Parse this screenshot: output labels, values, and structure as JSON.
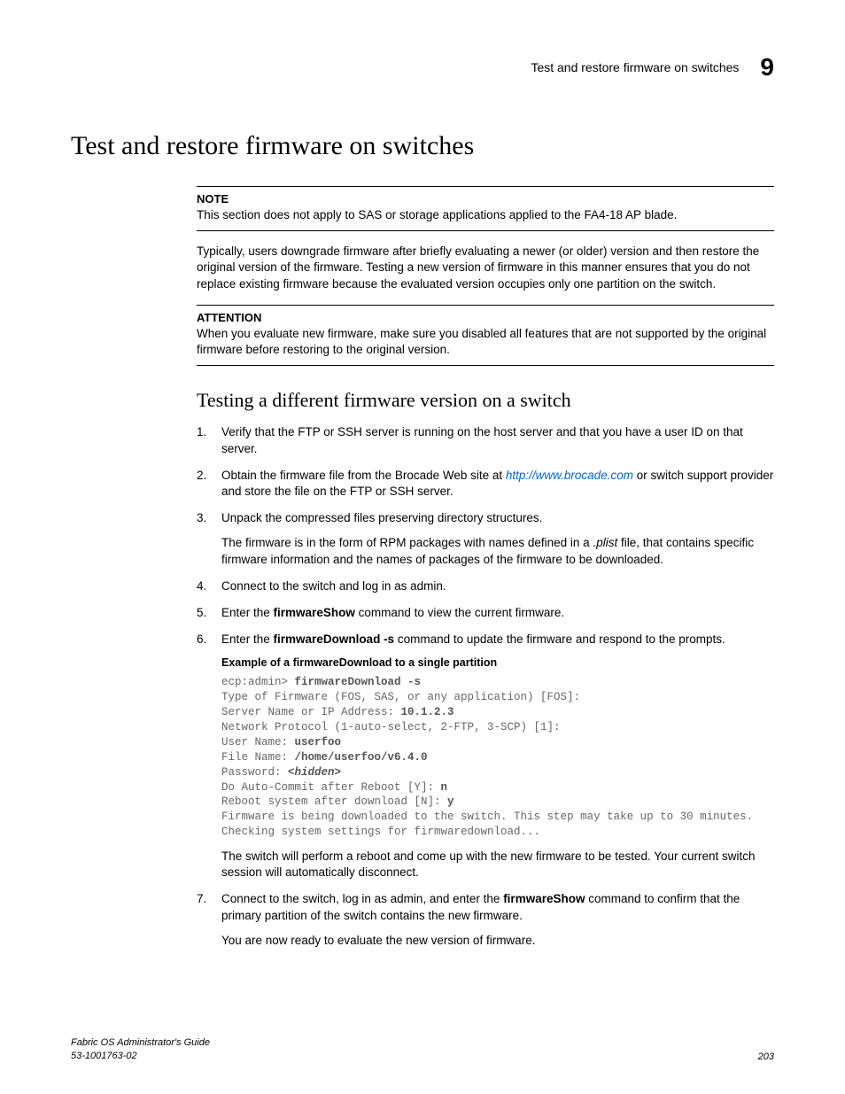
{
  "header": {
    "running_title": "Test and restore firmware on switches",
    "chapter_number": "9"
  },
  "main_title": "Test and restore firmware on switches",
  "note": {
    "label": "NOTE",
    "text": "This section does not apply to SAS or storage applications applied to the FA4-18 AP blade."
  },
  "intro_paragraph": "Typically, users downgrade firmware after briefly evaluating a newer (or older) version and then restore the original version of the firmware. Testing a new version of firmware in this manner ensures that you do not replace existing firmware because the evaluated version occupies only one partition on the switch.",
  "attention": {
    "label": "ATTENTION",
    "text": "When you evaluate new firmware, make sure you disabled all features that are not supported by the original firmware before restoring to the original version."
  },
  "subheading": "Testing a different firmware version on a switch",
  "steps": {
    "s1": "Verify that the FTP or SSH server is running on the host server and that you have a user ID on that server.",
    "s2_a": "Obtain the firmware file from the Brocade Web site at ",
    "s2_link": "http://www.brocade.com",
    "s2_b": " or switch support provider and store the file on the FTP or SSH server.",
    "s3": "Unpack the compressed files preserving directory structures.",
    "s3_sub_a": "The firmware is in the form of RPM packages with names defined in a ",
    "s3_sub_plist": ".plist",
    "s3_sub_b": " file, that contains specific firmware information and the names of packages of the firmware to be downloaded.",
    "s4": "Connect to the switch and log in as admin.",
    "s5_a": "Enter the ",
    "s5_cmd": "firmwareShow",
    "s5_b": " command to view the current firmware.",
    "s6_a": "Enter the ",
    "s6_cmd": "firmwareDownload -s",
    "s6_b": " command to update the firmware and respond to the prompts.",
    "example_title": "Example of a firmwareDownload to a single partition",
    "code": {
      "l1a": "ecp:admin> ",
      "l1b": "firmwareDownload -s",
      "l2": "Type of Firmware (FOS, SAS, or any application) [FOS]:",
      "l3a": "Server Name or IP Address: ",
      "l3b": "10.1.2.3",
      "l4": "Network Protocol (1-auto-select, 2-FTP, 3-SCP) [1]:",
      "l5a": "User Name: ",
      "l5b": "userfoo",
      "l6a": "File Name: ",
      "l6b": "/home/userfoo/v6.4.0",
      "l7a": "Password: ",
      "l7b": "<hidden>",
      "l8a": "Do Auto-Commit after Reboot [Y]: ",
      "l8b": "n",
      "l9a": "Reboot system after download [N]: ",
      "l9b": "y",
      "l10": "Firmware is being downloaded to the switch. This step may take up to 30 minutes.",
      "l11": "Checking system settings for firmwaredownload..."
    },
    "s6_after": "The switch will perform a reboot and come up with the new firmware to be tested. Your current switch session will automatically disconnect.",
    "s7_a": "Connect to the switch, log in as admin, and enter the ",
    "s7_cmd": "firmwareShow",
    "s7_b": " command to confirm that the primary partition of the switch contains the new firmware.",
    "s7_sub": "You are now ready to evaluate the new version of firmware."
  },
  "footer": {
    "book": "Fabric OS Administrator's Guide",
    "docnum": "53-1001763-02",
    "page": "203"
  }
}
